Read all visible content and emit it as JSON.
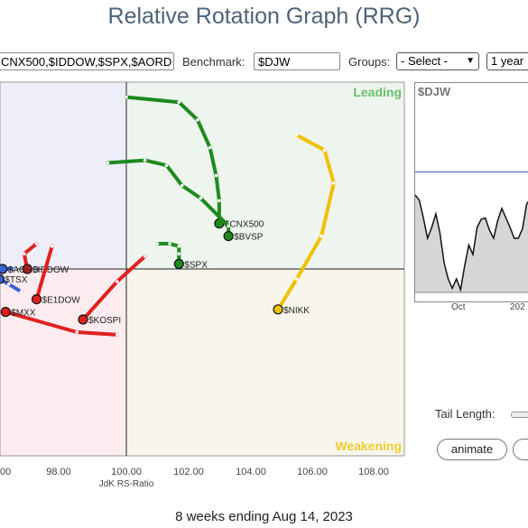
{
  "header": {
    "title": "Relative Rotation Graph (RRG)"
  },
  "controls": {
    "symbols_value": "CNX500,$IDDOW,$SPX,$AORD",
    "benchmark_label": "Benchmark:",
    "benchmark_value": "$DJW",
    "groups_label": "Groups:",
    "groups_selected": "- Select -",
    "period_selected": "1 year"
  },
  "quadrants": {
    "leading": "Leading",
    "weakening": "Weakening",
    "colors": {
      "leading": "#eef5ee",
      "weakening": "#f8f6ec",
      "lagging": "#fcecef",
      "improving": "#eeeef8"
    }
  },
  "axis": {
    "x_label": "JdK RS-Ratio",
    "x_ticks": [
      "00",
      "98.00",
      "100.00",
      "102.00",
      "104.00",
      "106.00",
      "108.00"
    ]
  },
  "chart_data": {
    "type": "scatter",
    "xlim": [
      95.9,
      106.9
    ],
    "ylim_note": "JdK RS-Momentum (axis not labeled in view)",
    "quadrant_center": [
      100.0,
      100.0
    ],
    "series": [
      {
        "name": "$CNX500",
        "color": "#1e8a1e",
        "head": [
          103.0,
          101.8
        ],
        "tail": [
          [
            100.0,
            106.8
          ],
          [
            101.7,
            106.6
          ],
          [
            102.3,
            105.9
          ],
          [
            102.7,
            104.8
          ],
          [
            102.9,
            103.7
          ],
          [
            103.0,
            102.7
          ],
          [
            103.0,
            101.8
          ]
        ]
      },
      {
        "name": "$BVSP",
        "color": "#1e8a1e",
        "head": [
          103.3,
          101.3
        ],
        "tail": [
          [
            99.4,
            104.2
          ],
          [
            100.6,
            104.3
          ],
          [
            101.3,
            104.1
          ],
          [
            101.8,
            103.3
          ],
          [
            102.4,
            102.8
          ],
          [
            103.3,
            101.7
          ],
          [
            103.3,
            101.3
          ]
        ]
      },
      {
        "name": "$SPX",
        "color": "#1e8a1e",
        "head": [
          101.7,
          100.2
        ],
        "tail": [
          [
            101.0,
            101.0
          ],
          [
            101.4,
            101.0
          ],
          [
            101.7,
            100.9
          ],
          [
            101.7,
            100.6
          ],
          [
            101.7,
            100.2
          ]
        ]
      },
      {
        "name": "$NIKK",
        "color": "#f0c000",
        "head": [
          104.9,
          98.4
        ],
        "tail": [
          [
            105.5,
            105.3
          ],
          [
            106.4,
            104.7
          ],
          [
            106.7,
            103.4
          ],
          [
            106.3,
            101.3
          ],
          [
            105.5,
            99.6
          ],
          [
            104.9,
            98.4
          ]
        ]
      },
      {
        "name": "$IDDOW",
        "color": "#e02020",
        "head": [
          96.8,
          100.0
        ],
        "tail": [
          [
            97.1,
            101.0
          ],
          [
            96.7,
            100.6
          ],
          [
            96.8,
            100.0
          ]
        ]
      },
      {
        "name": "$AORD",
        "color": "#3a5fd0",
        "head": [
          96.0,
          100.0
        ],
        "tail": [
          [
            96.4,
            100.0
          ],
          [
            96.0,
            100.0
          ]
        ]
      },
      {
        "name": "$TSX",
        "color": "#3a5fd0",
        "head": [
          95.9,
          99.6
        ],
        "tail": [
          [
            96.6,
            99.1
          ],
          [
            96.2,
            99.4
          ],
          [
            95.9,
            99.6
          ]
        ]
      },
      {
        "name": "$E1DOW",
        "color": "#e02020",
        "head": [
          97.1,
          98.8
        ],
        "tail": [
          [
            97.6,
            100.9
          ],
          [
            97.1,
            98.8
          ]
        ]
      },
      {
        "name": "$MXX",
        "color": "#e02020",
        "head": [
          96.1,
          98.3
        ],
        "tail": [
          [
            99.7,
            97.4
          ],
          [
            98.4,
            97.5
          ],
          [
            96.1,
            98.3
          ]
        ]
      },
      {
        "name": "$KOSPI",
        "color": "#e02020",
        "head": [
          98.6,
          98.0
        ],
        "tail": [
          [
            100.6,
            100.5
          ],
          [
            99.7,
            99.5
          ],
          [
            98.6,
            98.0
          ]
        ]
      }
    ],
    "inset": {
      "type": "line",
      "title": "$DJW",
      "x_labels": [
        "Oct",
        "202"
      ],
      "values": [
        0.72,
        0.68,
        0.55,
        0.4,
        0.48,
        0.58,
        0.44,
        0.22,
        0.1,
        0.03,
        0.1,
        0.02,
        0.2,
        0.35,
        0.28,
        0.48,
        0.54,
        0.55,
        0.46,
        0.4,
        0.53,
        0.62,
        0.55,
        0.48,
        0.4,
        0.4,
        0.47,
        0.65,
        0.7
      ],
      "reference_line": 0.89
    }
  },
  "settings": {
    "tail_length_label": "Tail Length:",
    "animate_label": "animate"
  },
  "footer": {
    "caption": "8 weeks ending Aug 14, 2023"
  }
}
